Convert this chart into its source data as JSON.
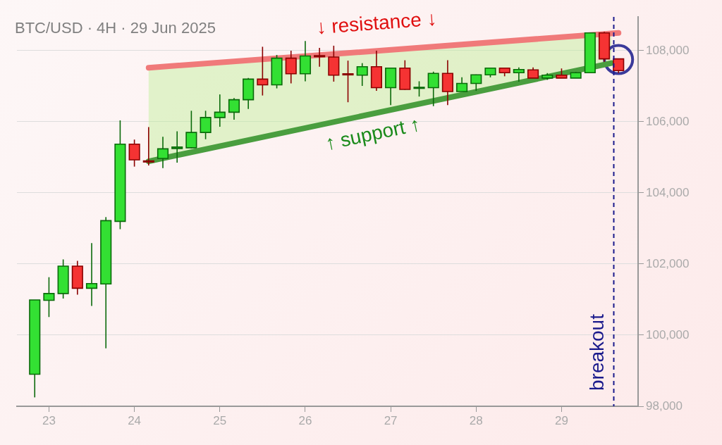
{
  "chart_data": {
    "type": "candlestick",
    "title": "BTC/USD · 4H · 29 Jun 2025",
    "x": [
      "2025-06-22T20:00",
      "2025-06-23T00:00",
      "2025-06-23T04:00",
      "2025-06-23T08:00",
      "2025-06-23T12:00",
      "2025-06-23T16:00",
      "2025-06-23T20:00",
      "2025-06-24T00:00",
      "2025-06-24T04:00",
      "2025-06-24T08:00",
      "2025-06-24T12:00",
      "2025-06-24T16:00",
      "2025-06-24T20:00",
      "2025-06-25T00:00",
      "2025-06-25T04:00",
      "2025-06-25T08:00",
      "2025-06-25T12:00",
      "2025-06-25T16:00",
      "2025-06-25T20:00",
      "2025-06-26T00:00",
      "2025-06-26T04:00",
      "2025-06-26T08:00",
      "2025-06-26T12:00",
      "2025-06-26T16:00",
      "2025-06-26T20:00",
      "2025-06-27T00:00",
      "2025-06-27T04:00",
      "2025-06-27T08:00",
      "2025-06-27T12:00",
      "2025-06-27T16:00",
      "2025-06-27T20:00",
      "2025-06-28T00:00",
      "2025-06-28T04:00",
      "2025-06-28T08:00",
      "2025-06-28T12:00",
      "2025-06-28T16:00",
      "2025-06-28T20:00",
      "2025-06-29T00:00",
      "2025-06-29T04:00",
      "2025-06-29T08:00",
      "2025-06-29T12:00",
      "2025-06-29T16:00"
    ],
    "ohlc": [
      [
        98900,
        100990,
        98250,
        100990
      ],
      [
        100980,
        101630,
        100510,
        101170
      ],
      [
        101170,
        102130,
        101030,
        101940
      ],
      [
        101940,
        102090,
        101140,
        101320
      ],
      [
        101320,
        102590,
        100820,
        101450
      ],
      [
        101440,
        103320,
        99630,
        103220
      ],
      [
        103200,
        106040,
        102980,
        105370
      ],
      [
        105370,
        105500,
        104740,
        104930
      ],
      [
        104900,
        105850,
        104770,
        104880
      ],
      [
        104970,
        105580,
        104700,
        105240
      ],
      [
        105250,
        105730,
        104850,
        105290
      ],
      [
        105270,
        106310,
        105250,
        105700
      ],
      [
        105700,
        106310,
        105510,
        106120
      ],
      [
        106120,
        106770,
        105860,
        106270
      ],
      [
        106270,
        106670,
        106060,
        106620
      ],
      [
        106620,
        107230,
        106360,
        107200
      ],
      [
        107200,
        108110,
        106740,
        107040
      ],
      [
        107040,
        107880,
        106940,
        107790
      ],
      [
        107790,
        108000,
        107080,
        107350
      ],
      [
        107350,
        108270,
        107140,
        107850
      ],
      [
        107860,
        108080,
        107550,
        107830
      ],
      [
        107820,
        108140,
        107130,
        107310
      ],
      [
        107350,
        107720,
        106550,
        107330
      ],
      [
        107310,
        107650,
        107010,
        107550
      ],
      [
        107550,
        108000,
        106870,
        106960
      ],
      [
        106960,
        107510,
        106470,
        107510
      ],
      [
        107510,
        107730,
        106900,
        106910
      ],
      [
        106950,
        107140,
        106710,
        106970
      ],
      [
        106960,
        107410,
        106440,
        107360
      ],
      [
        107360,
        107730,
        106470,
        106850
      ],
      [
        106850,
        107250,
        106850,
        107080
      ],
      [
        107080,
        107330,
        106870,
        107320
      ],
      [
        107320,
        107510,
        107250,
        107510
      ],
      [
        107510,
        107520,
        107280,
        107380
      ],
      [
        107380,
        107530,
        107130,
        107470
      ],
      [
        107460,
        107530,
        107230,
        107230
      ],
      [
        107230,
        107370,
        107180,
        107310
      ],
      [
        107310,
        107500,
        107230,
        107230
      ],
      [
        107230,
        107400,
        107230,
        107380
      ],
      [
        107380,
        108500,
        107380,
        108500
      ],
      [
        108500,
        108530,
        107690,
        107770
      ],
      [
        107770,
        107770,
        107370,
        107440
      ]
    ],
    "series": [
      {
        "type": "line",
        "name": "↓ resistance ↓",
        "color": "#f07a7a",
        "x": [
          "2025-06-24T04:00",
          "2025-06-29T16:00"
        ],
        "values": [
          107520,
          108500
        ]
      },
      {
        "type": "line",
        "name": "↑ support ↑",
        "color": "#4a9e3f",
        "x": [
          "2025-06-24T04:00",
          "2025-06-29T14:00"
        ],
        "values": [
          104890,
          107650
        ],
        "lower": [
          104890,
          107650
        ],
        "upper": [
          107520,
          108480
        ]
      },
      {
        "type": "scatter",
        "color": "#3a3a9a",
        "marker": "circle",
        "x": [
          "2025-06-29T16:00"
        ],
        "values": [
          107750
        ]
      }
    ],
    "xlim": [
      "2025-06-22T15:00",
      "2025-06-29T21:30"
    ],
    "xticks": [
      {
        "value": "2025-06-23",
        "label": "23"
      },
      {
        "value": "2025-06-24",
        "label": "24"
      },
      {
        "value": "2025-06-25",
        "label": "25"
      },
      {
        "value": "2025-06-26",
        "label": "26"
      },
      {
        "value": "2025-06-27",
        "label": "27"
      },
      {
        "value": "2025-06-28",
        "label": "28"
      },
      {
        "value": "2025-06-29",
        "label": "29"
      }
    ],
    "ylim": [
      98000,
      108950
    ],
    "yticks": [
      {
        "value": 98000,
        "label": "98,000"
      },
      {
        "value": 100000,
        "label": "100,000"
      },
      {
        "value": 102000,
        "label": "102,000"
      },
      {
        "value": 104000,
        "label": "104,000"
      },
      {
        "value": 106000,
        "label": "106,000"
      },
      {
        "value": 108000,
        "label": "108,000"
      }
    ],
    "grid": "y",
    "ref_lines": [
      {
        "axis": "x",
        "value": "2025-06-29T14:40",
        "label": "breakout",
        "color": "#1a1a8c",
        "line_style": "dashed"
      }
    ]
  }
}
